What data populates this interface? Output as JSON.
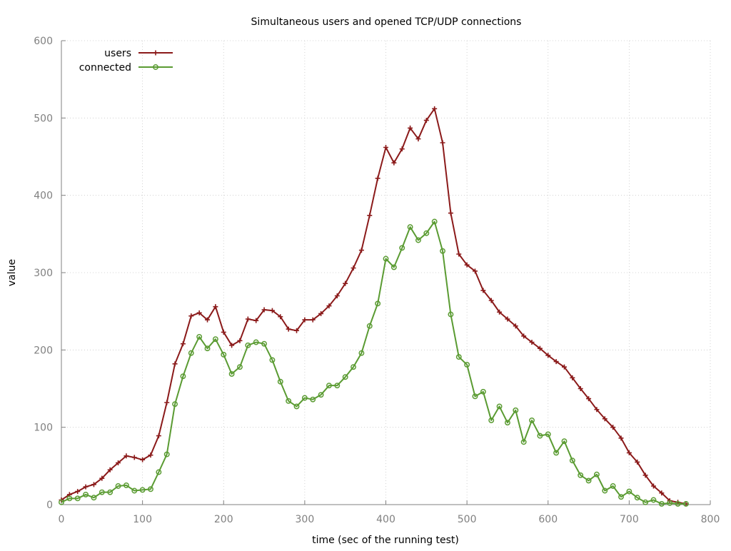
{
  "chart_data": {
    "type": "line",
    "title": "Simultaneous users and opened TCP/UDP connections",
    "xlabel": "time (sec of the running test)",
    "ylabel": "value",
    "xlim": [
      0,
      800
    ],
    "ylim": [
      0,
      600
    ],
    "x_ticks": [
      0,
      100,
      200,
      300,
      400,
      500,
      600,
      700,
      800
    ],
    "y_ticks": [
      0,
      100,
      200,
      300,
      400,
      500,
      600
    ],
    "grid": true,
    "legend_position": "top-left",
    "series": [
      {
        "name": "users",
        "color": "#8b1a1a",
        "marker": "plus",
        "x": [
          0,
          10,
          20,
          30,
          40,
          50,
          60,
          70,
          80,
          90,
          100,
          110,
          120,
          130,
          140,
          150,
          160,
          170,
          180,
          190,
          200,
          210,
          220,
          230,
          240,
          250,
          260,
          270,
          280,
          290,
          300,
          310,
          320,
          330,
          340,
          350,
          360,
          370,
          380,
          390,
          400,
          410,
          420,
          430,
          440,
          450,
          460,
          470,
          480,
          490,
          500,
          510,
          520,
          530,
          540,
          550,
          560,
          570,
          580,
          590,
          600,
          610,
          620,
          630,
          640,
          650,
          660,
          670,
          680,
          690,
          700,
          710,
          720,
          730,
          740,
          750,
          760,
          770
        ],
        "y": [
          6,
          13,
          17,
          23,
          26,
          34,
          45,
          54,
          63,
          61,
          58,
          64,
          89,
          132,
          182,
          208,
          244,
          248,
          239,
          256,
          223,
          206,
          212,
          240,
          238,
          252,
          251,
          243,
          227,
          225,
          239,
          239,
          247,
          257,
          270,
          286,
          306,
          329,
          374,
          422,
          462,
          442,
          460,
          487,
          473,
          497,
          512,
          468,
          377,
          324,
          310,
          302,
          277,
          264,
          249,
          240,
          231,
          218,
          210,
          202,
          193,
          185,
          178,
          164,
          150,
          137,
          123,
          111,
          100,
          86,
          67,
          55,
          38,
          24,
          15,
          5,
          3,
          1
        ]
      },
      {
        "name": "connected",
        "color": "#5a9b32",
        "marker": "circle",
        "x": [
          0,
          10,
          20,
          30,
          40,
          50,
          60,
          70,
          80,
          90,
          100,
          110,
          120,
          130,
          140,
          150,
          160,
          170,
          180,
          190,
          200,
          210,
          220,
          230,
          240,
          250,
          260,
          270,
          280,
          290,
          300,
          310,
          320,
          330,
          340,
          350,
          360,
          370,
          380,
          390,
          400,
          410,
          420,
          430,
          440,
          450,
          460,
          470,
          480,
          490,
          500,
          510,
          520,
          530,
          540,
          550,
          560,
          570,
          580,
          590,
          600,
          610,
          620,
          630,
          640,
          650,
          660,
          670,
          680,
          690,
          700,
          710,
          720,
          730,
          740,
          750,
          760,
          770
        ],
        "y": [
          3,
          8,
          8,
          13,
          9,
          16,
          16,
          24,
          25,
          18,
          19,
          20,
          42,
          65,
          130,
          166,
          196,
          217,
          202,
          214,
          194,
          169,
          178,
          206,
          210,
          208,
          187,
          159,
          134,
          127,
          138,
          136,
          142,
          154,
          154,
          165,
          178,
          196,
          231,
          260,
          318,
          307,
          332,
          359,
          342,
          351,
          366,
          328,
          246,
          191,
          181,
          140,
          146,
          109,
          127,
          106,
          122,
          81,
          109,
          89,
          91,
          67,
          82,
          57,
          38,
          31,
          39,
          18,
          24,
          10,
          17,
          9,
          3,
          6,
          1,
          2,
          1,
          1
        ]
      }
    ]
  }
}
